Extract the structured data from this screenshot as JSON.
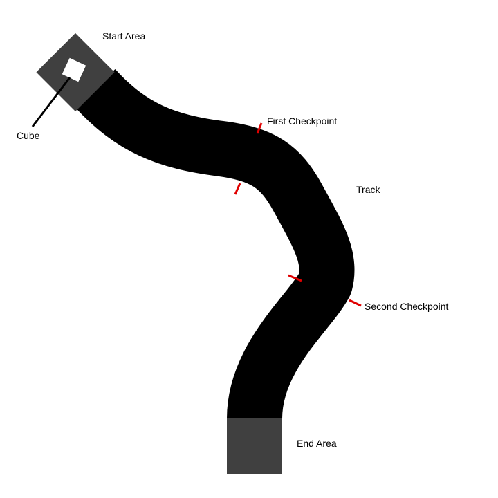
{
  "labels": {
    "start_area": "Start Area",
    "cube": "Cube",
    "first_checkpoint": "First Checkpoint",
    "track": "Track",
    "second_checkpoint": "Second Checkpoint",
    "end_area": "End Area"
  },
  "colors": {
    "background": "#ffffff",
    "track": "#000000",
    "area": "#404040",
    "cube": "#ffffff",
    "checkpoint": "#e00000",
    "leader_line": "#000000",
    "text": "#000000"
  }
}
